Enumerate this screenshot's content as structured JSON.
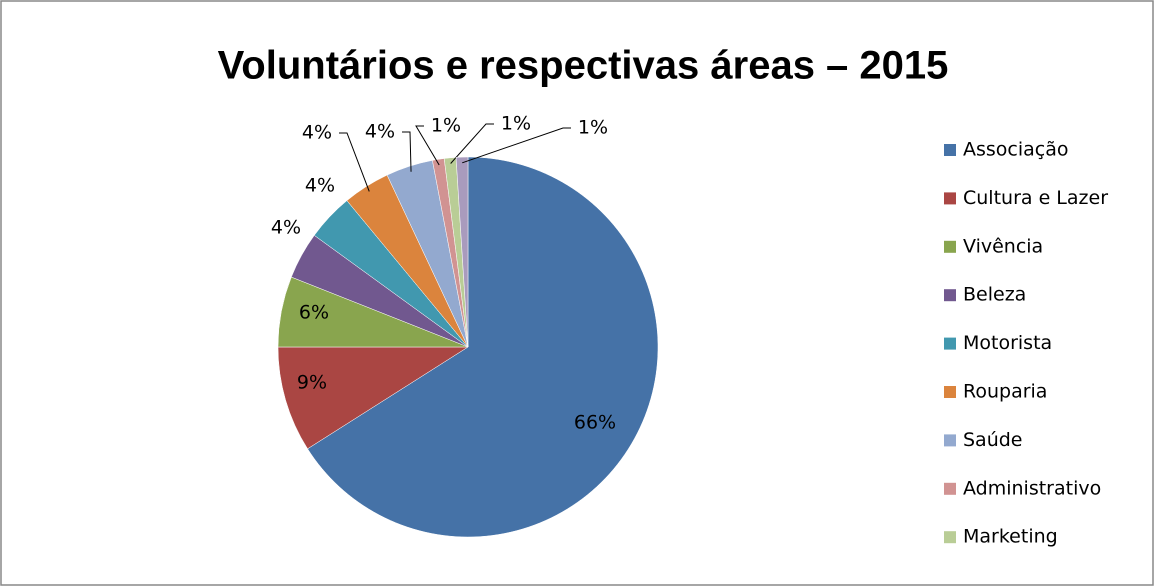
{
  "chart_data": {
    "type": "pie",
    "title": "Voluntários e respectivas áreas – 2015",
    "categories": [
      "Associação",
      "Cultura e Lazer",
      "Vivência",
      "Beleza",
      "Motorista",
      "Rouparia",
      "Saúde",
      "Administrativo",
      "Marketing",
      null
    ],
    "values": [
      66,
      9,
      6,
      4,
      4,
      4,
      4,
      1,
      1,
      1
    ],
    "value_labels": [
      "66%",
      "9%",
      "6%",
      "4%",
      "4%",
      "4%",
      "4%",
      "1%",
      "1%",
      "1%"
    ],
    "colors": [
      "#4572a7",
      "#aa4643",
      "#89a54e",
      "#71588f",
      "#4198af",
      "#db843d",
      "#93a9cf",
      "#d19392",
      "#b9cd96",
      "#a99bbd"
    ],
    "legend": "right"
  }
}
